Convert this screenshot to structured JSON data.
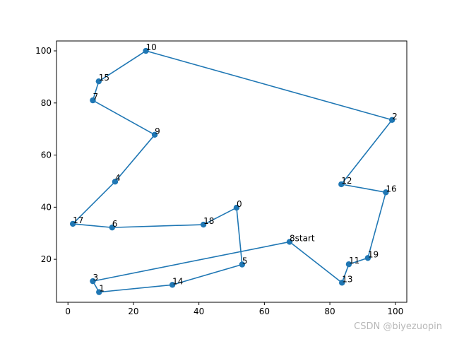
{
  "chart_data": {
    "type": "line",
    "title": "",
    "xlabel": "",
    "ylabel": "",
    "xlim": [
      -3.5,
      103.5
    ],
    "ylim": [
      3.5,
      103.8
    ],
    "x_ticks": [
      0,
      20,
      40,
      60,
      80,
      100
    ],
    "y_ticks": [
      20,
      40,
      60,
      80,
      100
    ],
    "grid": false,
    "line_color": "#1f77b4",
    "marker_color": "#1f77b4",
    "points": [
      {
        "label": "0",
        "x": 51.5,
        "y": 39.8
      },
      {
        "label": "1",
        "x": 9.5,
        "y": 7.4
      },
      {
        "label": "2",
        "x": 99.0,
        "y": 73.5
      },
      {
        "label": "3",
        "x": 7.6,
        "y": 11.6
      },
      {
        "label": "4",
        "x": 14.4,
        "y": 49.8
      },
      {
        "label": "5",
        "x": 53.2,
        "y": 18.0
      },
      {
        "label": "6",
        "x": 13.5,
        "y": 32.2
      },
      {
        "label": "7",
        "x": 7.6,
        "y": 81.0
      },
      {
        "label": "8start",
        "x": 67.7,
        "y": 26.7
      },
      {
        "label": "9",
        "x": 26.5,
        "y": 67.8
      },
      {
        "label": "10",
        "x": 23.8,
        "y": 100.0
      },
      {
        "label": "11",
        "x": 85.8,
        "y": 18.1
      },
      {
        "label": "12",
        "x": 83.5,
        "y": 48.8
      },
      {
        "label": "13",
        "x": 83.7,
        "y": 11.0
      },
      {
        "label": "14",
        "x": 31.9,
        "y": 10.2
      },
      {
        "label": "15",
        "x": 9.4,
        "y": 88.3
      },
      {
        "label": "16",
        "x": 97.1,
        "y": 45.7
      },
      {
        "label": "17",
        "x": 1.5,
        "y": 33.6
      },
      {
        "label": "18",
        "x": 41.4,
        "y": 33.3
      },
      {
        "label": "19",
        "x": 91.6,
        "y": 20.5
      }
    ],
    "route": [
      "8start",
      "13",
      "11",
      "19",
      "16",
      "12",
      "2",
      "10",
      "15",
      "7",
      "9",
      "4",
      "17",
      "6",
      "18",
      "0",
      "5",
      "14",
      "1",
      "3",
      "8start"
    ]
  },
  "watermark": "CSDN @biyezuopin"
}
